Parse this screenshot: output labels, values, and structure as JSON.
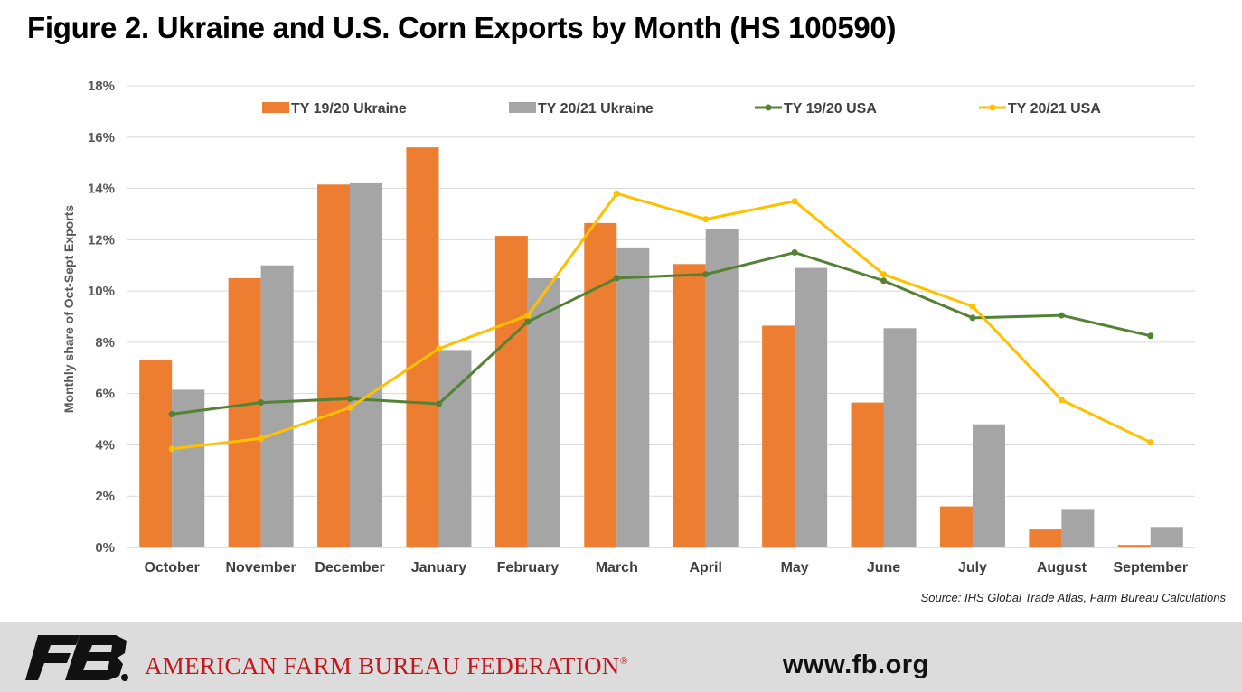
{
  "title": "Figure 2. Ukraine and U.S. Corn Exports by Month (HS 100590)",
  "source": "Source: IHS Global Trade Atlas, Farm Bureau Calculations",
  "footer": {
    "org_name": "AMERICAN FARM BUREAU FEDERATION",
    "registered_mark": "®",
    "website": "www.fb.org",
    "logo_icon": "fb-logo-icon"
  },
  "colors": {
    "ukraine_1920": "#ED7D31",
    "ukraine_2021": "#A5A5A5",
    "usa_1920": "#548235",
    "usa_2021": "#FFC000",
    "gridline": "#d9d9d9",
    "footer_bg": "#dcdcdc",
    "brand_red": "#c4161c"
  },
  "chart_data": {
    "type": "bar",
    "categories": [
      "October",
      "November",
      "December",
      "January",
      "February",
      "March",
      "April",
      "May",
      "June",
      "July",
      "August",
      "September"
    ],
    "ylabel": "Monthly share of Oct-Sept Exports",
    "xlabel": "",
    "ylim": [
      0,
      18
    ],
    "ytick_labels": [
      "0%",
      "2%",
      "4%",
      "6%",
      "8%",
      "10%",
      "12%",
      "14%",
      "16%",
      "18%"
    ],
    "grid": true,
    "legend_position": "top",
    "bar_series": [
      {
        "name": "TY 19/20 Ukraine",
        "values": [
          7.3,
          10.5,
          14.15,
          15.6,
          12.15,
          12.65,
          11.05,
          8.65,
          5.65,
          1.6,
          0.7,
          0.1
        ]
      },
      {
        "name": "TY 20/21 Ukraine",
        "values": [
          6.15,
          11.0,
          14.2,
          7.7,
          10.5,
          11.7,
          12.4,
          10.9,
          8.55,
          4.8,
          1.5,
          0.8
        ]
      }
    ],
    "line_series": [
      {
        "name": "TY 19/20 USA",
        "values": [
          5.2,
          5.65,
          5.8,
          5.6,
          8.8,
          10.5,
          10.65,
          11.5,
          10.4,
          8.95,
          9.05,
          8.25
        ]
      },
      {
        "name": "TY 20/21 USA",
        "values": [
          3.85,
          4.25,
          5.45,
          7.75,
          9.05,
          13.8,
          12.8,
          13.5,
          10.65,
          9.4,
          5.75,
          4.1
        ]
      }
    ]
  }
}
